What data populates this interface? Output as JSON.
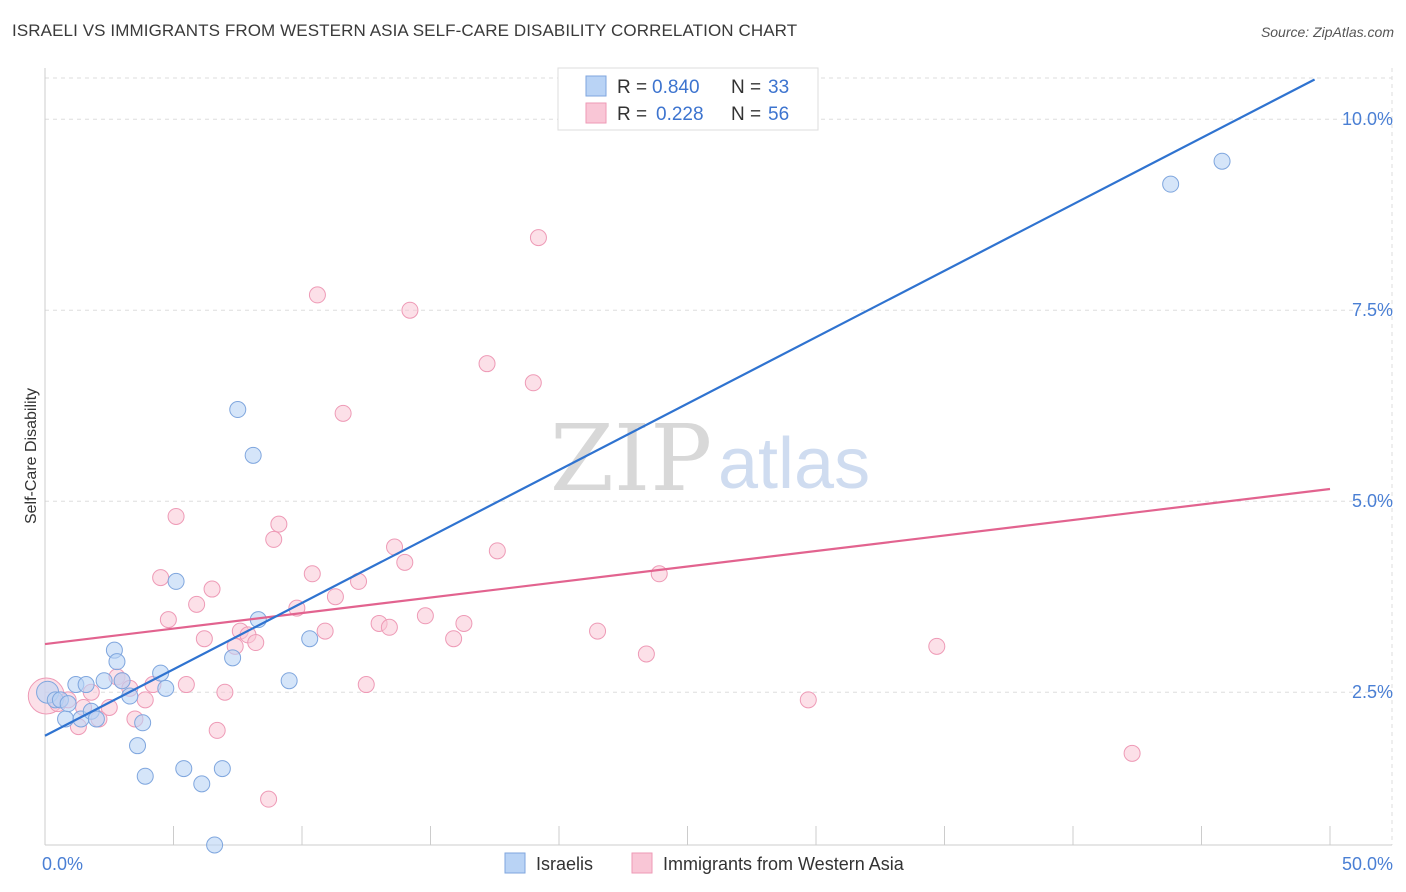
{
  "title": "ISRAELI VS IMMIGRANTS FROM WESTERN ASIA SELF-CARE DISABILITY CORRELATION CHART",
  "source": "Source: ZipAtlas.com",
  "colors": {
    "blue_fill": "#b9d3f5",
    "blue_stroke": "#7fa6de",
    "blue_line": "#2f73d0",
    "pink_fill": "#f9c6d6",
    "pink_stroke": "#ee9ab6",
    "pink_line": "#e2638f",
    "grid": "#dddddd",
    "tick_text": "#4a7fd4"
  },
  "watermark": {
    "zip": "ZIP",
    "atlas": "atlas"
  },
  "legend": {
    "rows": [
      {
        "r_label": "R =",
        "r_value": "0.840",
        "n_label": "N =",
        "n_value": "33"
      },
      {
        "r_label": "R =",
        "r_value": "0.228",
        "n_label": "N =",
        "n_value": "56"
      }
    ]
  },
  "bottom_legend": [
    "Israelis",
    "Immigrants from Western Asia"
  ],
  "chart_data": {
    "type": "scatter",
    "title": "ISRAELI VS IMMIGRANTS FROM WESTERN ASIA SELF-CARE DISABILITY CORRELATION CHART",
    "xlabel": "",
    "ylabel": "Self-Care Disability",
    "xlim": [
      0,
      50
    ],
    "ylim": [
      0.5,
      10.5
    ],
    "x_tick_labels": [
      "0.0%",
      "50.0%"
    ],
    "y_ticks": [
      2.5,
      5.0,
      7.5,
      10.0
    ],
    "y_tick_labels": [
      "2.5%",
      "5.0%",
      "7.5%",
      "10.0%"
    ],
    "series": [
      {
        "name": "Israelis",
        "r": 0.84,
        "n": 33,
        "trend": {
          "x": [
            0,
            49.4
          ],
          "y": [
            1.93,
            10.52
          ]
        },
        "points": [
          [
            0.1,
            2.5
          ],
          [
            0.4,
            2.4
          ],
          [
            0.6,
            2.4
          ],
          [
            0.8,
            2.15
          ],
          [
            0.9,
            2.35
          ],
          [
            1.2,
            2.6
          ],
          [
            1.4,
            2.15
          ],
          [
            1.6,
            2.6
          ],
          [
            1.8,
            2.25
          ],
          [
            2.0,
            2.15
          ],
          [
            2.3,
            2.65
          ],
          [
            2.7,
            3.05
          ],
          [
            2.8,
            2.9
          ],
          [
            3.0,
            2.65
          ],
          [
            3.3,
            2.45
          ],
          [
            3.6,
            1.8
          ],
          [
            3.8,
            2.1
          ],
          [
            3.9,
            1.4
          ],
          [
            4.5,
            2.75
          ],
          [
            4.7,
            2.55
          ],
          [
            5.1,
            3.95
          ],
          [
            5.4,
            1.5
          ],
          [
            6.1,
            1.3
          ],
          [
            6.6,
            0.5
          ],
          [
            6.9,
            1.5
          ],
          [
            7.3,
            2.95
          ],
          [
            7.5,
            6.2
          ],
          [
            8.1,
            5.6
          ],
          [
            8.3,
            3.45
          ],
          [
            9.5,
            2.65
          ],
          [
            10.3,
            3.2
          ],
          [
            43.8,
            9.15
          ],
          [
            45.8,
            9.45
          ]
        ]
      },
      {
        "name": "Immigrants from Western Asia",
        "r": 0.228,
        "n": 56,
        "trend": {
          "x": [
            0,
            50.0
          ],
          "y": [
            3.13,
            5.16
          ]
        },
        "points": [
          [
            0.05,
            2.45
          ],
          [
            0.5,
            2.35
          ],
          [
            0.9,
            2.4
          ],
          [
            1.3,
            2.05
          ],
          [
            1.5,
            2.3
          ],
          [
            1.8,
            2.5
          ],
          [
            2.1,
            2.15
          ],
          [
            2.5,
            2.3
          ],
          [
            2.8,
            2.7
          ],
          [
            3.0,
            2.65
          ],
          [
            3.3,
            2.55
          ],
          [
            3.5,
            2.15
          ],
          [
            3.9,
            2.4
          ],
          [
            4.2,
            2.6
          ],
          [
            4.5,
            4.0
          ],
          [
            4.8,
            3.45
          ],
          [
            5.1,
            4.8
          ],
          [
            5.5,
            2.6
          ],
          [
            5.9,
            3.65
          ],
          [
            6.2,
            3.2
          ],
          [
            6.5,
            3.85
          ],
          [
            6.7,
            2.0
          ],
          [
            7.0,
            2.5
          ],
          [
            7.4,
            3.1
          ],
          [
            7.6,
            3.3
          ],
          [
            7.9,
            3.25
          ],
          [
            8.2,
            3.15
          ],
          [
            8.7,
            1.1
          ],
          [
            8.9,
            4.5
          ],
          [
            9.1,
            4.7
          ],
          [
            9.8,
            3.6
          ],
          [
            10.4,
            4.05
          ],
          [
            10.6,
            7.7
          ],
          [
            10.9,
            3.3
          ],
          [
            11.3,
            3.75
          ],
          [
            11.6,
            6.15
          ],
          [
            12.2,
            3.95
          ],
          [
            12.5,
            2.6
          ],
          [
            13.0,
            3.4
          ],
          [
            13.4,
            3.35
          ],
          [
            13.6,
            4.4
          ],
          [
            14.0,
            4.2
          ],
          [
            14.2,
            7.5
          ],
          [
            14.8,
            3.5
          ],
          [
            15.9,
            3.2
          ],
          [
            16.3,
            3.4
          ],
          [
            17.2,
            6.8
          ],
          [
            17.6,
            4.35
          ],
          [
            19.0,
            6.55
          ],
          [
            19.2,
            8.45
          ],
          [
            21.5,
            3.3
          ],
          [
            23.4,
            3.0
          ],
          [
            23.9,
            4.05
          ],
          [
            29.7,
            2.4
          ],
          [
            34.7,
            3.1
          ],
          [
            42.3,
            1.7
          ]
        ]
      }
    ]
  }
}
